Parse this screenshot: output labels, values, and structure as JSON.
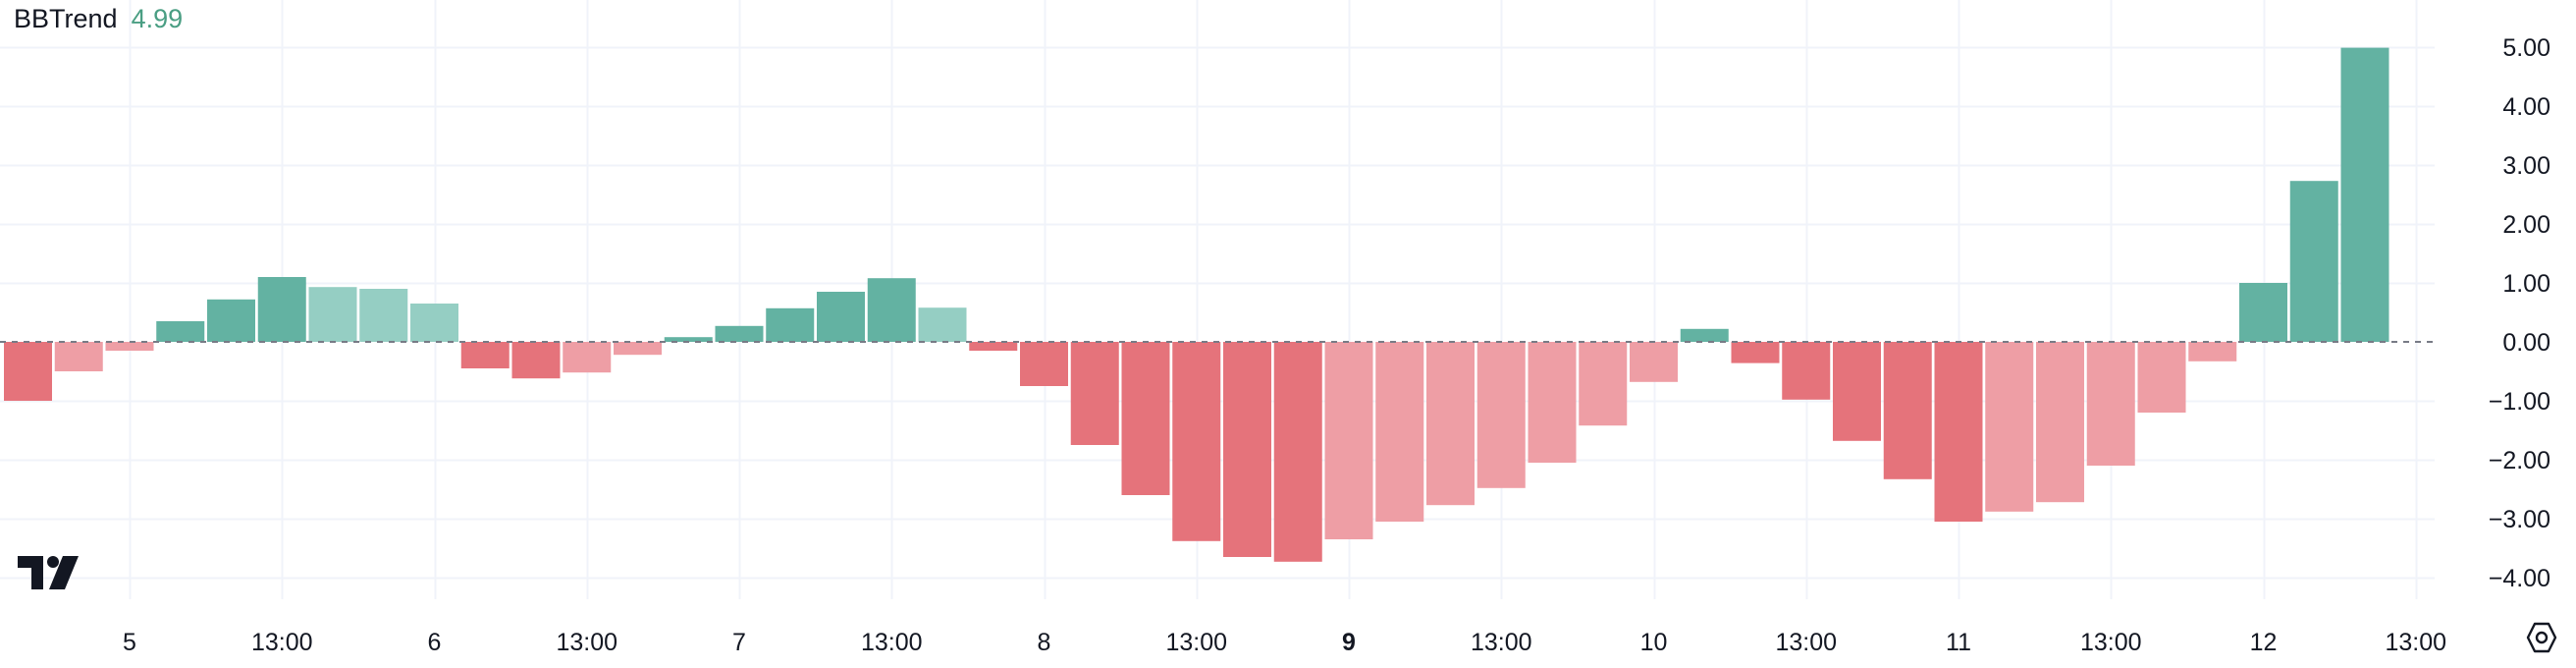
{
  "legend": {
    "name": "BBTrend",
    "value": "4.99",
    "value_color": "#4a9e83"
  },
  "colors": {
    "pos_strong": "#63b2a2",
    "pos_weak": "#95cec3",
    "neg_strong": "#e5737b",
    "neg_weak": "#ee9ea5",
    "grid": "#f0f3fa",
    "zero_line": "#787b86"
  },
  "icons": {
    "logo": "tradingview-logo-icon",
    "settings": "settings-gear-icon"
  },
  "chart_data": {
    "type": "bar",
    "title": "",
    "series": [
      {
        "name": "BBTrend",
        "last_value": 4.99
      }
    ],
    "values": [
      -1.0,
      -0.5,
      -0.15,
      0.35,
      0.72,
      1.1,
      0.93,
      0.9,
      0.65,
      -0.45,
      -0.62,
      -0.52,
      -0.22,
      0.08,
      0.27,
      0.57,
      0.85,
      1.08,
      0.58,
      -0.15,
      -0.75,
      -1.75,
      -2.6,
      -3.38,
      -3.65,
      -3.73,
      -3.35,
      -3.05,
      -2.77,
      -2.48,
      -2.05,
      -1.42,
      -0.68,
      0.22,
      -0.36,
      -0.98,
      -1.68,
      -2.33,
      -3.05,
      -2.88,
      -2.72,
      -2.1,
      -1.2,
      -0.33,
      1.0,
      2.73,
      4.99
    ],
    "bar_shade": [
      "strong",
      "weak",
      "weak",
      "strong",
      "strong",
      "strong",
      "weak",
      "weak",
      "weak",
      "strong",
      "strong",
      "weak",
      "weak",
      "strong",
      "strong",
      "strong",
      "strong",
      "strong",
      "weak",
      "strong",
      "strong",
      "strong",
      "strong",
      "strong",
      "strong",
      "strong",
      "weak",
      "weak",
      "weak",
      "weak",
      "weak",
      "weak",
      "weak",
      "strong",
      "strong",
      "strong",
      "strong",
      "strong",
      "strong",
      "weak",
      "weak",
      "weak",
      "weak",
      "weak",
      "strong",
      "strong",
      "strong"
    ],
    "ylim": [
      -4.5,
      5.5
    ],
    "yticks": [
      {
        "value": 5,
        "label": "5.00"
      },
      {
        "value": 4,
        "label": "4.00"
      },
      {
        "value": 3,
        "label": "3.00"
      },
      {
        "value": 2,
        "label": "2.00"
      },
      {
        "value": 1,
        "label": "1.00"
      },
      {
        "value": 0,
        "label": "0.00"
      },
      {
        "value": -1,
        "label": "−1.00"
      },
      {
        "value": -2,
        "label": "−2.00"
      },
      {
        "value": -3,
        "label": "−3.00"
      },
      {
        "value": -4,
        "label": "−4.00"
      }
    ],
    "xticks": [
      {
        "pos": 2,
        "label": "5",
        "bold": false
      },
      {
        "pos": 5,
        "label": "13:00",
        "bold": false
      },
      {
        "pos": 8,
        "label": "6",
        "bold": false
      },
      {
        "pos": 11,
        "label": "13:00",
        "bold": false
      },
      {
        "pos": 14,
        "label": "7",
        "bold": false
      },
      {
        "pos": 17,
        "label": "13:00",
        "bold": false
      },
      {
        "pos": 20,
        "label": "8",
        "bold": false
      },
      {
        "pos": 23,
        "label": "13:00",
        "bold": false
      },
      {
        "pos": 26,
        "label": "9",
        "bold": true
      },
      {
        "pos": 29,
        "label": "13:00",
        "bold": false
      },
      {
        "pos": 32,
        "label": "10",
        "bold": false
      },
      {
        "pos": 35,
        "label": "13:00",
        "bold": false
      },
      {
        "pos": 38,
        "label": "11",
        "bold": false
      },
      {
        "pos": 41,
        "label": "13:00",
        "bold": false
      },
      {
        "pos": 44,
        "label": "12",
        "bold": false
      },
      {
        "pos": 47,
        "label": "13:00",
        "bold": false
      }
    ],
    "grid": true,
    "legend_position": "top-left"
  }
}
